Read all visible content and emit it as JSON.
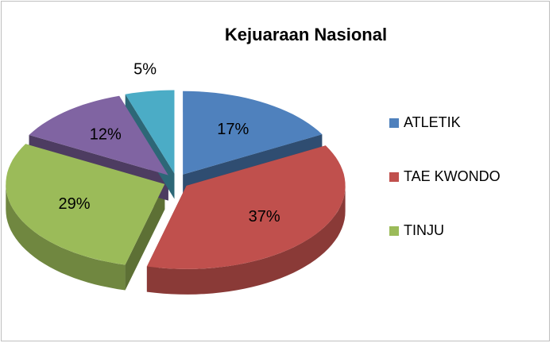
{
  "chart_data": {
    "type": "pie",
    "title": "Kejuaraan Nasional",
    "categories": [
      "ATLETIK",
      "TAE KWONDO",
      "TINJU",
      null,
      null
    ],
    "values": [
      17,
      37,
      29,
      12,
      5
    ],
    "value_labels": [
      "17%",
      "37%",
      "29%",
      "12%",
      "5%"
    ],
    "colors": [
      "#4f81bd",
      "#c0504d",
      "#9bbb59",
      "#8064a2",
      "#4bacc6"
    ],
    "legend": "right"
  }
}
